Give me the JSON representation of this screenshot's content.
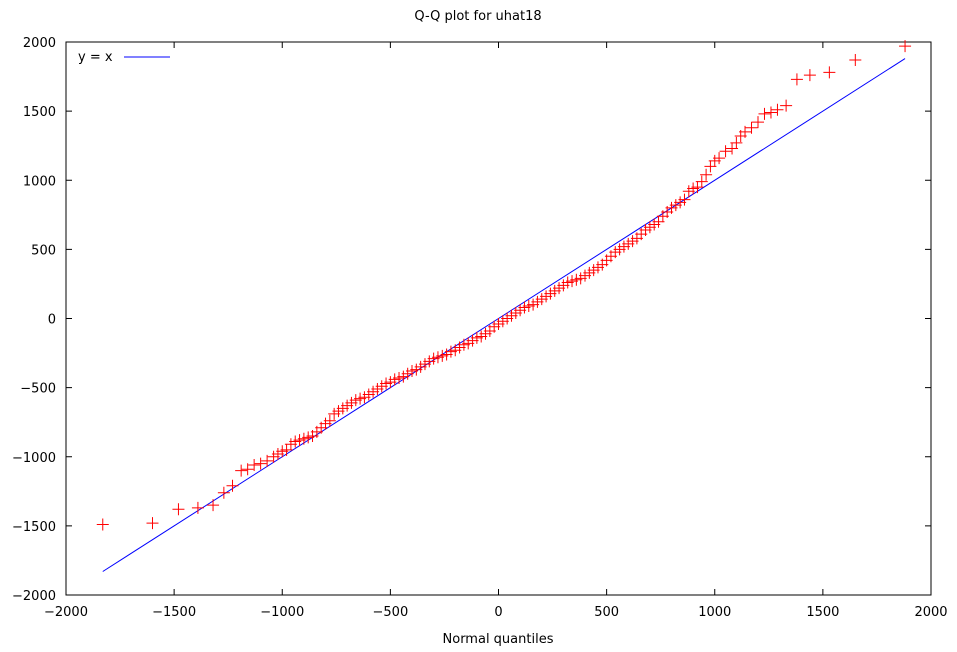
{
  "chart_data": {
    "type": "scatter",
    "title": "Q-Q plot for uhat18",
    "xlabel": "Normal quantiles",
    "ylabel": "",
    "xlim": [
      -2000,
      2000
    ],
    "ylim": [
      -2000,
      2000
    ],
    "x_ticks": [
      -2000,
      -1500,
      -1000,
      -500,
      0,
      500,
      1000,
      1500,
      2000
    ],
    "y_ticks": [
      -2000,
      -1500,
      -1000,
      -500,
      0,
      500,
      1000,
      1500,
      2000
    ],
    "x_tick_labels": [
      "−2000",
      "−1500",
      "−1000",
      "−500",
      "0",
      "500",
      "1000",
      "1500",
      "2000"
    ],
    "y_tick_labels": [
      "−2000",
      "−1500",
      "−1000",
      "−500",
      "0",
      "500",
      "1000",
      "1500",
      "2000"
    ],
    "grid": false,
    "legend_position": "top-left",
    "legend": [
      "y = x"
    ],
    "colors": {
      "points": "#ff0000",
      "reference_line": "#0000ff",
      "frame": "#000000"
    },
    "reference_line": {
      "name": "y = x",
      "x": [
        -1830,
        1880
      ],
      "y": [
        -1830,
        1880
      ]
    },
    "series": [
      {
        "marker": "plus",
        "points": [
          [
            -1830,
            -1490
          ],
          [
            -1600,
            -1480
          ],
          [
            -1480,
            -1380
          ],
          [
            -1390,
            -1370
          ],
          [
            -1320,
            -1350
          ],
          [
            -1270,
            -1260
          ],
          [
            -1230,
            -1210
          ],
          [
            -1190,
            -1100
          ],
          [
            -1160,
            -1090
          ],
          [
            -1130,
            -1060
          ],
          [
            -1100,
            -1050
          ],
          [
            -1070,
            -1030
          ],
          [
            -1040,
            -1000
          ],
          [
            -1020,
            -980
          ],
          [
            -1000,
            -960
          ],
          [
            -980,
            -950
          ],
          [
            -960,
            -910
          ],
          [
            -940,
            -890
          ],
          [
            -920,
            -880
          ],
          [
            -900,
            -870
          ],
          [
            -880,
            -860
          ],
          [
            -860,
            -850
          ],
          [
            -840,
            -820
          ],
          [
            -820,
            -790
          ],
          [
            -800,
            -760
          ],
          [
            -780,
            -740
          ],
          [
            -760,
            -690
          ],
          [
            -740,
            -670
          ],
          [
            -720,
            -650
          ],
          [
            -700,
            -630
          ],
          [
            -680,
            -610
          ],
          [
            -660,
            -590
          ],
          [
            -640,
            -580
          ],
          [
            -620,
            -570
          ],
          [
            -600,
            -550
          ],
          [
            -580,
            -530
          ],
          [
            -560,
            -510
          ],
          [
            -540,
            -490
          ],
          [
            -520,
            -470
          ],
          [
            -500,
            -460
          ],
          [
            -480,
            -440
          ],
          [
            -460,
            -430
          ],
          [
            -440,
            -420
          ],
          [
            -420,
            -400
          ],
          [
            -400,
            -380
          ],
          [
            -380,
            -370
          ],
          [
            -360,
            -350
          ],
          [
            -340,
            -330
          ],
          [
            -320,
            -310
          ],
          [
            -300,
            -290
          ],
          [
            -280,
            -280
          ],
          [
            -260,
            -270
          ],
          [
            -240,
            -260
          ],
          [
            -220,
            -240
          ],
          [
            -200,
            -230
          ],
          [
            -180,
            -210
          ],
          [
            -160,
            -190
          ],
          [
            -140,
            -180
          ],
          [
            -120,
            -160
          ],
          [
            -100,
            -140
          ],
          [
            -80,
            -130
          ],
          [
            -60,
            -110
          ],
          [
            -40,
            -90
          ],
          [
            -20,
            -60
          ],
          [
            0,
            -40
          ],
          [
            20,
            -20
          ],
          [
            40,
            0
          ],
          [
            60,
            20
          ],
          [
            80,
            40
          ],
          [
            100,
            60
          ],
          [
            120,
            80
          ],
          [
            140,
            90
          ],
          [
            160,
            100
          ],
          [
            180,
            120
          ],
          [
            200,
            140
          ],
          [
            220,
            160
          ],
          [
            240,
            180
          ],
          [
            260,
            200
          ],
          [
            280,
            220
          ],
          [
            300,
            240
          ],
          [
            320,
            260
          ],
          [
            340,
            270
          ],
          [
            360,
            280
          ],
          [
            380,
            290
          ],
          [
            400,
            310
          ],
          [
            420,
            330
          ],
          [
            440,
            350
          ],
          [
            460,
            370
          ],
          [
            480,
            390
          ],
          [
            500,
            420
          ],
          [
            520,
            450
          ],
          [
            540,
            480
          ],
          [
            560,
            500
          ],
          [
            580,
            520
          ],
          [
            600,
            540
          ],
          [
            620,
            560
          ],
          [
            640,
            580
          ],
          [
            660,
            610
          ],
          [
            680,
            640
          ],
          [
            700,
            660
          ],
          [
            720,
            680
          ],
          [
            740,
            700
          ],
          [
            760,
            740
          ],
          [
            780,
            770
          ],
          [
            800,
            800
          ],
          [
            820,
            820
          ],
          [
            840,
            840
          ],
          [
            860,
            860
          ],
          [
            880,
            920
          ],
          [
            900,
            940
          ],
          [
            920,
            950
          ],
          [
            940,
            990
          ],
          [
            960,
            1040
          ],
          [
            980,
            1100
          ],
          [
            1000,
            1140
          ],
          [
            1020,
            1160
          ],
          [
            1050,
            1210
          ],
          [
            1080,
            1230
          ],
          [
            1100,
            1270
          ],
          [
            1120,
            1320
          ],
          [
            1140,
            1350
          ],
          [
            1170,
            1380
          ],
          [
            1200,
            1420
          ],
          [
            1230,
            1480
          ],
          [
            1260,
            1490
          ],
          [
            1290,
            1510
          ],
          [
            1330,
            1540
          ],
          [
            1380,
            1730
          ],
          [
            1440,
            1760
          ],
          [
            1530,
            1780
          ],
          [
            1650,
            1870
          ],
          [
            1880,
            1970
          ]
        ]
      }
    ]
  }
}
